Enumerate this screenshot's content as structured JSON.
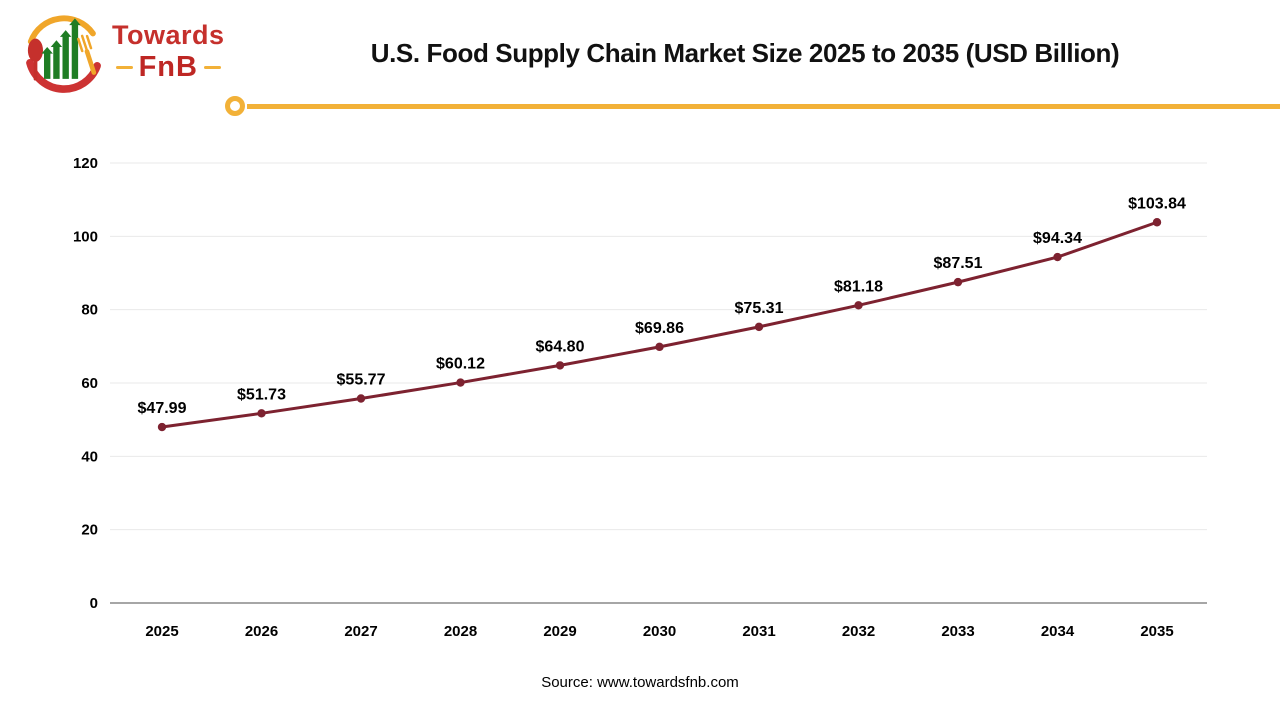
{
  "header": {
    "title": "U.S. Food Supply Chain Market Size 2025 to 2035 (USD Billion)",
    "divider_color": "#F2B138"
  },
  "logo": {
    "brand_top": "Towards",
    "brand_bottom": "FnB",
    "colors": {
      "red": "#C5302C",
      "dark_red": "#BE2724",
      "green": "#1F7D24",
      "yellow": "#F0A62A"
    }
  },
  "chart_data": {
    "type": "line",
    "title": "U.S. Food Supply Chain Market Size 2025 to 2035 (USD Billion)",
    "categories": [
      "2025",
      "2026",
      "2027",
      "2028",
      "2029",
      "2030",
      "2031",
      "2032",
      "2033",
      "2034",
      "2035"
    ],
    "series": [
      {
        "name": "U.S. Food Supply Chain Market Size (USD Billion)",
        "values": [
          47.99,
          51.73,
          55.77,
          60.12,
          64.8,
          69.86,
          75.31,
          81.18,
          87.51,
          94.34,
          103.84
        ],
        "labels": [
          "$47.99",
          "$51.73",
          "$55.77",
          "$60.12",
          "$64.80",
          "$69.86",
          "$75.31",
          "$81.18",
          "$87.51",
          "$94.34",
          "$103.84"
        ]
      }
    ],
    "xlabel": "",
    "ylabel": "",
    "ylim": [
      0,
      120
    ],
    "yticks": [
      0,
      20,
      40,
      60,
      80,
      100,
      120
    ],
    "grid": true,
    "legend": "none",
    "line_color": "#7D2230",
    "marker_color": "#7D2230",
    "grid_color": "#E9E9E9",
    "axis_color": "#A6A6A6"
  },
  "footer": {
    "source": "Source: www.towardsfnb.com"
  }
}
